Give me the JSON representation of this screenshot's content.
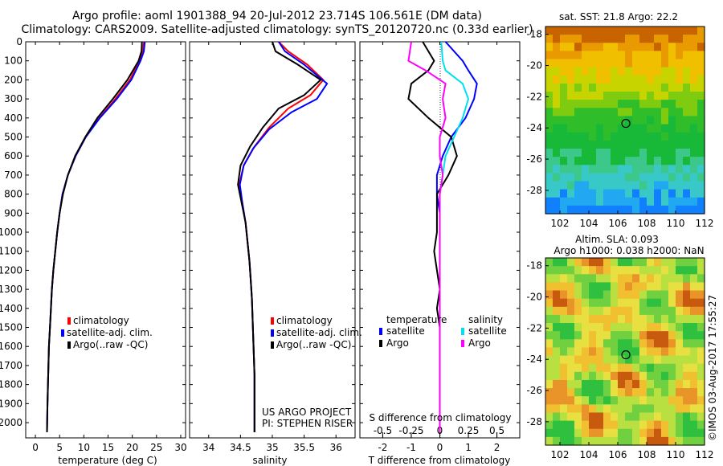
{
  "title_line1": "Argo profile: aoml 1901388_94 20-Jul-2012 23.714S 106.561E (DM data)",
  "title_line2": "Climatology: CARS2009. Satellite-adjusted climatology: synTS_20120720.nc (0.33d earlier)",
  "stamp": "©IMOS 03-Aug-2017 17:55:27",
  "colors": {
    "climatology": "#ff0000",
    "satellite": "#0000ff",
    "argo": "#000000",
    "salinity_satellite": "#00e0f0",
    "salinity_argo": "#ff00ff"
  },
  "chart_data": [
    {
      "id": "temperature",
      "type": "line",
      "xlabel": "temperature (deg C)",
      "ylabel": "",
      "xlim": [
        -2,
        31
      ],
      "ylim": [
        2080,
        0
      ],
      "xticks": [
        0,
        5,
        10,
        15,
        20,
        25,
        30
      ],
      "yticks": [
        0,
        100,
        200,
        300,
        400,
        500,
        600,
        700,
        800,
        900,
        1000,
        1100,
        1200,
        1300,
        1400,
        1500,
        1600,
        1700,
        1800,
        1900,
        2000
      ],
      "legend": [
        "climatology",
        "satellite-adj. clim.",
        "Argo(..raw -QC)"
      ],
      "series": [
        {
          "name": "climatology",
          "x": [
            22.4,
            22.2,
            21.5,
            19.5,
            16.5,
            13.2,
            10.4,
            8.3,
            6.7,
            5.6,
            5.0,
            4.5,
            4.1,
            3.7,
            3.4,
            3.2,
            3.0,
            2.8,
            2.7,
            2.6,
            2.5,
            2.4
          ],
          "y": [
            0,
            50,
            100,
            200,
            300,
            400,
            500,
            600,
            700,
            800,
            900,
            1000,
            1100,
            1200,
            1300,
            1400,
            1500,
            1600,
            1700,
            1800,
            1900,
            2050
          ]
        },
        {
          "name": "satellite-adj. clim.",
          "x": [
            22.6,
            22.4,
            21.7,
            19.8,
            16.8,
            13.3,
            10.4,
            8.3,
            6.7,
            5.6,
            5.0,
            4.5,
            4.1,
            3.7,
            3.4,
            3.2,
            3.0,
            2.8,
            2.7,
            2.6,
            2.5,
            2.4
          ],
          "y": [
            0,
            50,
            100,
            200,
            300,
            400,
            500,
            600,
            700,
            800,
            900,
            1000,
            1100,
            1200,
            1300,
            1400,
            1500,
            1600,
            1700,
            1800,
            1900,
            2050
          ]
        },
        {
          "name": "Argo(..raw -QC)",
          "x": [
            22.0,
            21.9,
            21.3,
            19.0,
            16.0,
            12.8,
            10.3,
            8.2,
            6.7,
            5.7,
            5.0,
            4.5,
            4.1,
            3.7,
            3.4,
            3.2,
            3.0,
            2.8,
            2.7,
            2.6,
            2.5,
            2.4
          ],
          "y": [
            0,
            50,
            100,
            200,
            300,
            400,
            500,
            600,
            700,
            800,
            900,
            1000,
            1100,
            1200,
            1300,
            1400,
            1500,
            1600,
            1700,
            1800,
            1900,
            2050
          ]
        }
      ]
    },
    {
      "id": "salinity",
      "type": "line",
      "xlabel": "salinity",
      "xlim": [
        33.7,
        36.3
      ],
      "ylim": [
        2080,
        0
      ],
      "xticks": [
        34,
        34.5,
        35,
        35.5,
        36
      ],
      "legend": [
        "climatology",
        "satellite-adj. clim.",
        "Argo(..raw -QC)"
      ],
      "annotation": [
        "US ARGO PROJECT",
        "PI: STEPHEN RISER"
      ],
      "series": [
        {
          "name": "climatology",
          "x": [
            35.1,
            35.25,
            35.55,
            35.8,
            35.6,
            35.25,
            34.95,
            34.72,
            34.55,
            34.48,
            34.53,
            34.58,
            34.61,
            34.64,
            34.66,
            34.68,
            34.69,
            34.7,
            34.71,
            34.72,
            34.72,
            34.72
          ],
          "y": [
            0,
            50,
            120,
            200,
            280,
            350,
            450,
            550,
            650,
            750,
            850,
            950,
            1050,
            1150,
            1250,
            1350,
            1450,
            1550,
            1650,
            1750,
            1850,
            2050
          ]
        },
        {
          "name": "satellite-adj. clim.",
          "x": [
            35.1,
            35.2,
            35.5,
            35.86,
            35.7,
            35.3,
            34.95,
            34.7,
            34.55,
            34.49,
            34.53,
            34.58,
            34.61,
            34.64,
            34.66,
            34.68,
            34.69,
            34.7,
            34.71,
            34.72,
            34.72,
            34.72
          ],
          "y": [
            0,
            50,
            120,
            220,
            300,
            370,
            460,
            560,
            650,
            750,
            850,
            950,
            1050,
            1150,
            1250,
            1350,
            1450,
            1550,
            1650,
            1750,
            1850,
            2050
          ]
        },
        {
          "name": "Argo(..raw -QC)",
          "x": [
            35.0,
            35.05,
            35.4,
            35.76,
            35.5,
            35.1,
            34.85,
            34.65,
            34.5,
            34.46,
            34.52,
            34.58,
            34.61,
            34.64,
            34.66,
            34.68,
            34.69,
            34.7,
            34.71,
            34.72,
            34.72,
            34.72
          ],
          "y": [
            0,
            50,
            120,
            200,
            280,
            350,
            450,
            550,
            650,
            750,
            850,
            950,
            1050,
            1150,
            1250,
            1350,
            1450,
            1550,
            1650,
            1750,
            1850,
            2050
          ]
        }
      ]
    },
    {
      "id": "difference",
      "type": "line",
      "xlabel": "T difference from climatology",
      "xlabel_top": "S difference from climatology",
      "xlim": [
        -2.8,
        2.8
      ],
      "ylim": [
        2080,
        0
      ],
      "xticks": [
        -2,
        -1,
        0,
        1,
        2
      ],
      "xticks_salinity": [
        -0.5,
        -0.25,
        0,
        0.25,
        0.5
      ],
      "legend_titles": [
        "temperature",
        "salinity"
      ],
      "legend": [
        "satellite",
        "Argo",
        "satellite",
        "Argo"
      ],
      "series": [
        {
          "name": "temperature satellite",
          "x": [
            0.2,
            0.8,
            1.0,
            1.3,
            1.2,
            0.9,
            0.4,
            0.1,
            -0.1,
            -0.1,
            0.0,
            0.0,
            0.0,
            0.0,
            0.0,
            0.0,
            0.0,
            0.0,
            0.0,
            0.0,
            0.0
          ],
          "y": [
            0,
            100,
            150,
            220,
            300,
            400,
            500,
            600,
            700,
            800,
            900,
            1000,
            1100,
            1200,
            1300,
            1400,
            1500,
            1600,
            1700,
            1800,
            2050
          ]
        },
        {
          "name": "temperature Argo",
          "x": [
            -0.6,
            -0.2,
            -0.4,
            -1.0,
            -1.1,
            -0.4,
            0.4,
            0.6,
            0.3,
            -0.1,
            -0.1,
            -0.1,
            -0.2,
            -0.1,
            0.0,
            -0.1,
            0.0,
            0.0,
            0.0,
            0.0,
            0.0
          ],
          "y": [
            0,
            100,
            150,
            220,
            300,
            400,
            500,
            600,
            700,
            800,
            900,
            1000,
            1100,
            1200,
            1300,
            1400,
            1500,
            1600,
            1700,
            1800,
            2050
          ]
        },
        {
          "name": "salinity satellite",
          "x": [
            0.05,
            0.1,
            0.2,
            0.8,
            1.0,
            0.8,
            0.5,
            0.2,
            0.1,
            0.0,
            0.0,
            0.0,
            0.0,
            0.0,
            0.0,
            0.0,
            0.0,
            0.0,
            0.0,
            0.0,
            0.0
          ],
          "y": [
            0,
            100,
            150,
            220,
            300,
            400,
            500,
            600,
            700,
            800,
            900,
            1000,
            1100,
            1200,
            1300,
            1400,
            1500,
            1600,
            1700,
            1800,
            2050
          ]
        },
        {
          "name": "salinity Argo",
          "x": [
            -1.0,
            -1.1,
            -0.5,
            0.2,
            0.1,
            0.2,
            0.0,
            0.0,
            0.1,
            0.0,
            0.0,
            0.0,
            0.0,
            0.0,
            0.0,
            0.0,
            0.0,
            0.0,
            0.0,
            0.0,
            0.0
          ],
          "y": [
            0,
            100,
            150,
            220,
            300,
            400,
            500,
            600,
            700,
            800,
            900,
            1000,
            1100,
            1200,
            1300,
            1400,
            1500,
            1600,
            1700,
            1800,
            2050
          ]
        }
      ]
    },
    {
      "id": "sst_map",
      "type": "heatmap",
      "title": "sat. SST: 21.8  Argo: 22.2",
      "xlim": [
        101,
        112
      ],
      "ylim": [
        -29.5,
        -17.5
      ],
      "xticks": [
        102,
        104,
        106,
        108,
        110,
        112
      ],
      "yticks": [
        -18,
        -20,
        -22,
        -24,
        -26,
        -28
      ],
      "marker": {
        "lon": 106.56,
        "lat": -23.71
      }
    },
    {
      "id": "sla_map",
      "type": "heatmap",
      "title_line1": "Altim. SLA: 0.093",
      "title_line2": "Argo h1000: 0.038 h2000: NaN",
      "xlim": [
        101,
        112
      ],
      "ylim": [
        -29.5,
        -17.5
      ],
      "xticks": [
        102,
        104,
        106,
        108,
        110,
        112
      ],
      "yticks": [
        -18,
        -20,
        -22,
        -24,
        -26,
        -28
      ],
      "marker": {
        "lon": 106.56,
        "lat": -23.71
      }
    }
  ]
}
